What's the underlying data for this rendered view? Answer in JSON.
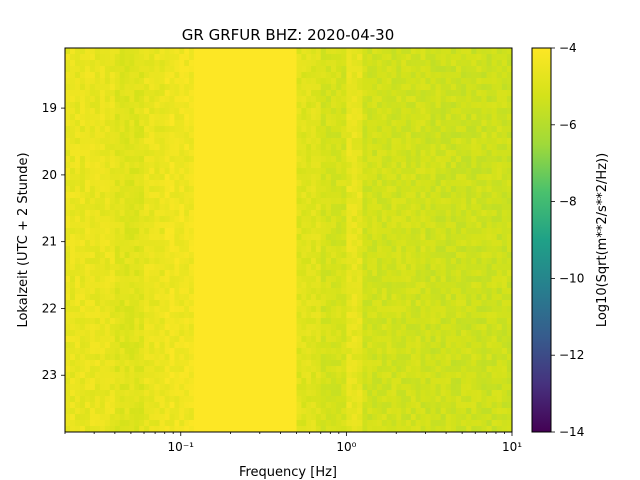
{
  "chart_data": {
    "type": "heatmap",
    "title": "GR GRFUR  BHZ: 2020-04-30",
    "xlabel": "Frequency [Hz]",
    "ylabel": "Lokalzeit (UTC + 2 Stunde)",
    "x_scale": "log",
    "xlim": [
      0.02,
      10
    ],
    "x_ticks": [
      {
        "value": 0.1,
        "label": "10⁻¹"
      },
      {
        "value": 1,
        "label": "10⁰"
      },
      {
        "value": 10,
        "label": "10¹"
      }
    ],
    "ylim": [
      18.1,
      23.85
    ],
    "y_inverted": true,
    "y_ticks": [
      19,
      20,
      21,
      22,
      23
    ],
    "colorbar": {
      "label": "Log10(Sqrt(m**2/s**2/Hz))",
      "range": [
        -14,
        -4
      ],
      "ticks": [
        -4,
        -6,
        -8,
        -10,
        -12,
        -14
      ],
      "colormap": "viridis"
    },
    "frequency_bands": [
      {
        "f_min": 0.02,
        "f_max": 0.04,
        "value": -4.6
      },
      {
        "f_min": 0.04,
        "f_max": 0.06,
        "value": -4.9
      },
      {
        "f_min": 0.06,
        "f_max": 0.08,
        "value": -4.6
      },
      {
        "f_min": 0.08,
        "f_max": 0.12,
        "value": -4.4
      },
      {
        "f_min": 0.12,
        "f_max": 0.5,
        "value": -4.0
      },
      {
        "f_min": 0.5,
        "f_max": 0.7,
        "value": -4.9
      },
      {
        "f_min": 0.7,
        "f_max": 1.0,
        "value": -5.2
      },
      {
        "f_min": 1.0,
        "f_max": 1.25,
        "value": -4.7
      },
      {
        "f_min": 1.25,
        "f_max": 3.0,
        "value": -5.3
      },
      {
        "f_min": 3.0,
        "f_max": 10.0,
        "value": -5.4
      }
    ],
    "noise_seed": 7
  }
}
